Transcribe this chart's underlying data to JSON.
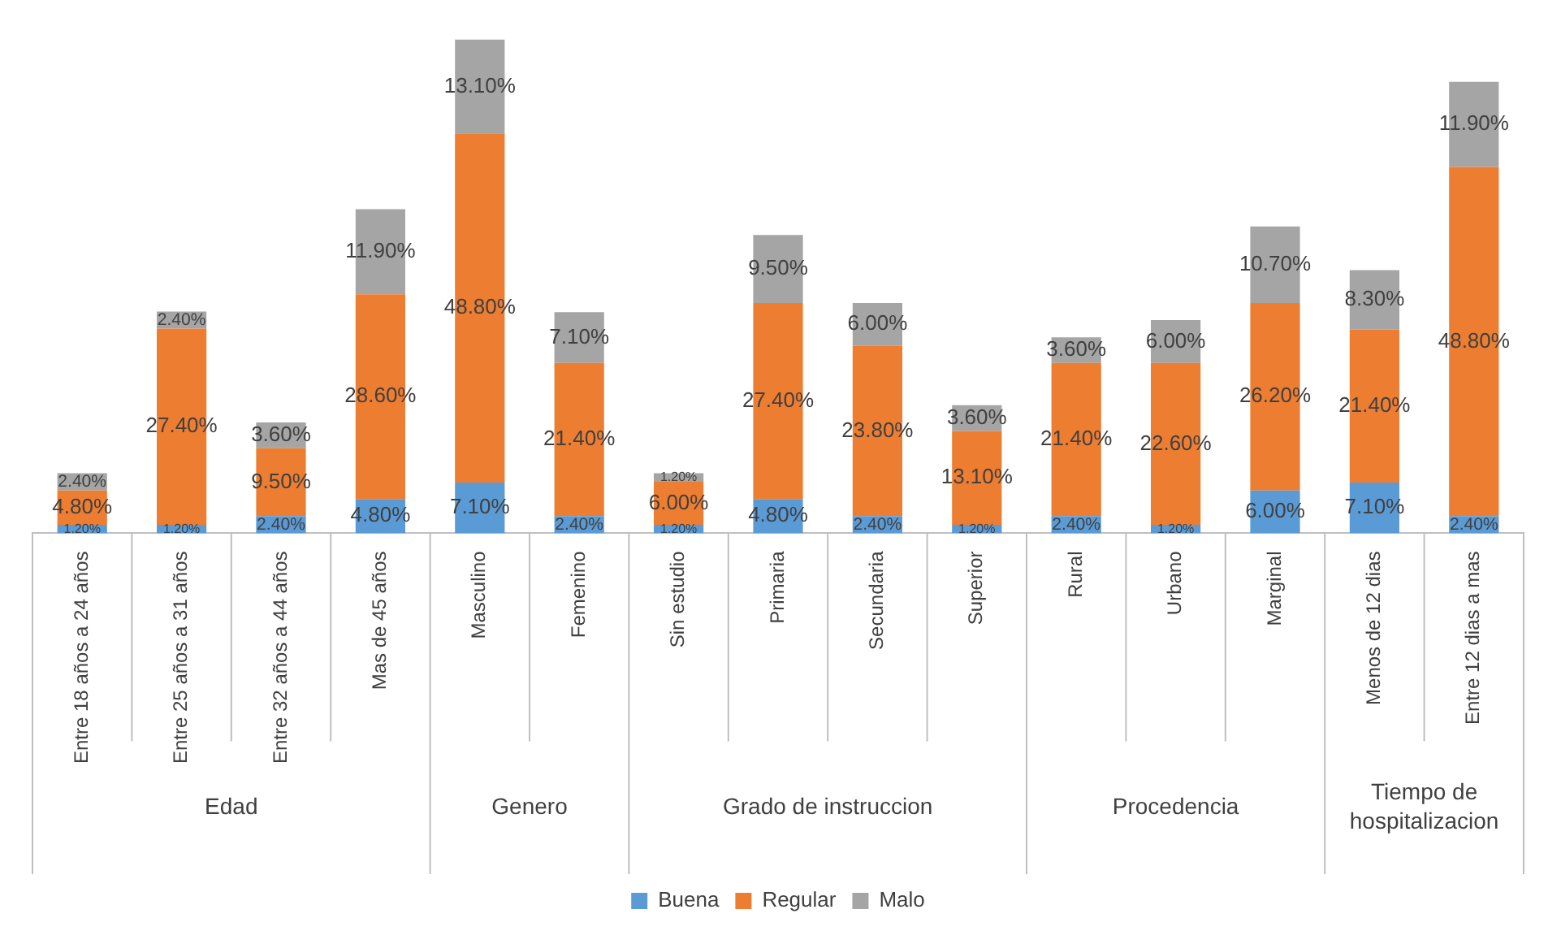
{
  "chart_data": {
    "type": "bar",
    "stacked": true,
    "legend": "bottom",
    "categories": [
      "Entre 18 años a 24 años",
      "Entre 25 años a 31 años",
      "Entre 32 años a 44 años",
      "Mas de 45 años",
      "Masculino",
      "Femenino",
      "Sin estudio",
      "Primaria",
      "Secundaria",
      "Superior",
      "Rural",
      "Urbano",
      "Marginal",
      "Menos de 12 dias",
      "Entre 12 dias a mas"
    ],
    "series": [
      {
        "name": "Buena",
        "color": "#5b9bd5",
        "values": [
          1.2,
          1.2,
          2.4,
          4.8,
          7.1,
          2.4,
          1.2,
          4.8,
          2.4,
          1.2,
          2.4,
          1.2,
          6.0,
          7.1,
          2.4
        ],
        "value_labels": [
          "1.20%",
          "1.20%",
          "2.40%",
          "4.80%",
          "7.10%",
          "2.40%",
          "1.20%",
          "4.80%",
          "2.40%",
          "1.20%",
          "2.40%",
          "1.20%",
          "6.00%",
          "7.10%",
          "2.40%"
        ]
      },
      {
        "name": "Regular",
        "color": "#ed7d31",
        "values": [
          4.8,
          27.4,
          9.5,
          28.6,
          48.8,
          21.4,
          6.0,
          27.4,
          23.8,
          13.1,
          21.4,
          22.6,
          26.2,
          21.4,
          48.8
        ],
        "value_labels": [
          "4.80%",
          "27.40%",
          "9.50%",
          "28.60%",
          "48.80%",
          "21.40%",
          "6.00%",
          "27.40%",
          "23.80%",
          "13.10%",
          "21.40%",
          "22.60%",
          "26.20%",
          "21.40%",
          "48.80%"
        ]
      },
      {
        "name": "Malo",
        "color": "#a5a5a5",
        "values": [
          2.4,
          2.4,
          3.6,
          11.9,
          13.1,
          7.1,
          1.2,
          9.5,
          6.0,
          3.6,
          3.6,
          6.0,
          10.7,
          8.3,
          11.9
        ],
        "value_labels": [
          "2.40%",
          "2.40%",
          "3.60%",
          "11.90%",
          "13.10%",
          "7.10%",
          "1.20%",
          "9.50%",
          "6.00%",
          "3.60%",
          "3.60%",
          "6.00%",
          "10.70%",
          "8.30%",
          "11.90%"
        ]
      }
    ],
    "annotations": [
      "Edad",
      "Genero",
      "Grado de instruccion",
      "Procedencia",
      "Tiempo de hospitalizacion"
    ]
  }
}
